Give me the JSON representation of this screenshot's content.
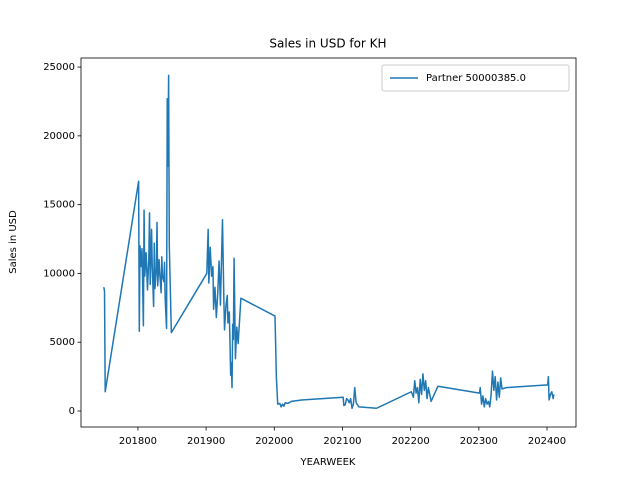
{
  "chart_data": {
    "type": "line",
    "title": "Sales in USD for KH",
    "x_label": "YEARWEEK",
    "y_label": "Sales in USD",
    "x": [
      201750,
      201751,
      201752,
      201801,
      201802,
      201803,
      201805,
      201806,
      201808,
      201809,
      201810,
      201812,
      201813,
      201814,
      201816,
      201817,
      201818,
      201820,
      201821,
      201823,
      201824,
      201825,
      201827,
      201828,
      201829,
      201831,
      201832,
      201834,
      201835,
      201836,
      201838,
      201839,
      201840,
      201842,
      201843,
      201844,
      201845,
      201846,
      201849,
      201901,
      201903,
      201904,
      201906,
      201908,
      201910,
      201911,
      201913,
      201915,
      201917,
      201919,
      201921,
      201922,
      201924,
      201926,
      201927,
      201929,
      201931,
      201932,
      201934,
      201935,
      201936,
      201937,
      201938,
      201939,
      201940,
      201941,
      201943,
      201945,
      201947,
      201951,
      202001,
      202002,
      202003,
      202005,
      202008,
      202010,
      202012,
      202014,
      202016,
      202020,
      202025,
      202040,
      202101,
      202102,
      202104,
      202106,
      202108,
      202110,
      202112,
      202114,
      202116,
      202118,
      202120,
      202124,
      202150,
      202201,
      202204,
      202206,
      202208,
      202210,
      202212,
      202214,
      202216,
      202218,
      202220,
      202222,
      202224,
      202226,
      202228,
      202230,
      202240,
      202301,
      202302,
      202304,
      202306,
      202308,
      202310,
      202312,
      202314,
      202316,
      202318,
      202320,
      202322,
      202324,
      202326,
      202328,
      202330,
      202332,
      202334,
      202340,
      202401,
      202402,
      202403,
      202405,
      202407,
      202409,
      202410
    ],
    "series": [
      {
        "name": "Partner 50000385.0",
        "color": "#1f77b4",
        "values": [
          9000,
          8700,
          1400,
          16700,
          5800,
          12000,
          10500,
          11800,
          6200,
          14600,
          9800,
          11500,
          10200,
          8800,
          11200,
          14400,
          9200,
          13200,
          10500,
          7600,
          12200,
          8900,
          10400,
          13700,
          9100,
          11000,
          10000,
          8600,
          11200,
          9800,
          9400,
          10800,
          8100,
          6000,
          22700,
          17800,
          24400,
          12000,
          5700,
          10000,
          13200,
          9300,
          11900,
          9800,
          10500,
          7400,
          9000,
          6800,
          8500,
          10900,
          7700,
          9800,
          13900,
          8200,
          5900,
          7600,
          8400,
          6400,
          7200,
          5000,
          2600,
          3500,
          1700,
          6300,
          5200,
          11100,
          3800,
          6100,
          4900,
          8200,
          6900,
          4800,
          2500,
          500,
          550,
          300,
          500,
          350,
          600,
          550,
          700,
          800,
          1000,
          400,
          450,
          900,
          800,
          600,
          900,
          200,
          500,
          1700,
          600,
          300,
          200,
          1400,
          1000,
          2200,
          1300,
          1700,
          600,
          2300,
          1200,
          2700,
          1500,
          2200,
          900,
          1700,
          1200,
          700,
          1800,
          1300,
          1700,
          500,
          1100,
          300,
          900,
          500,
          700,
          300,
          1200,
          2900,
          1500,
          2500,
          800,
          2100,
          1000,
          2400,
          1600,
          1700,
          1900,
          2500,
          800,
          1200,
          1400,
          900,
          1200
        ]
      }
    ],
    "xlim": [
      201716.5,
      202442.5
    ],
    "ylim": [
      -1163,
      25660
    ],
    "xticks": [
      201800,
      201900,
      202000,
      202100,
      202200,
      202300,
      202400
    ],
    "yticks": [
      0,
      5000,
      10000,
      15000,
      20000,
      25000
    ],
    "legend": "upper right"
  }
}
